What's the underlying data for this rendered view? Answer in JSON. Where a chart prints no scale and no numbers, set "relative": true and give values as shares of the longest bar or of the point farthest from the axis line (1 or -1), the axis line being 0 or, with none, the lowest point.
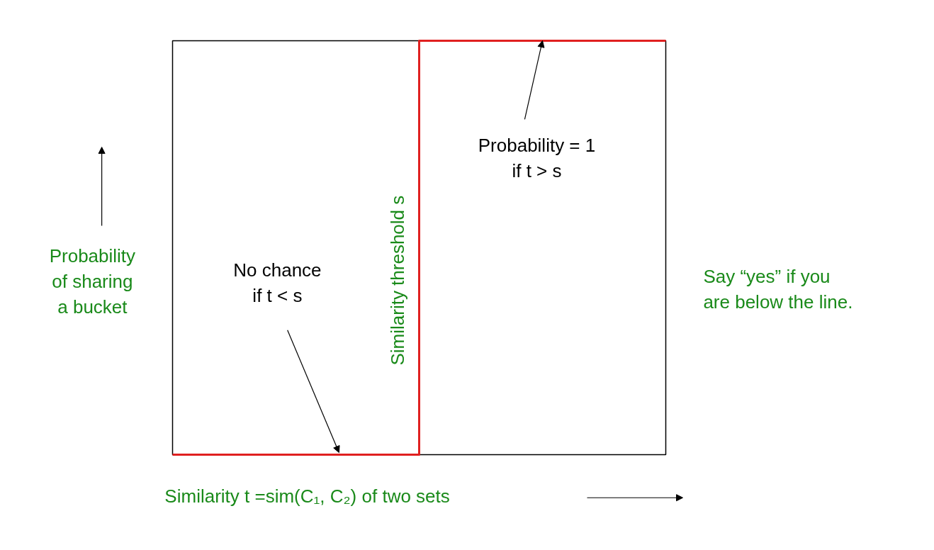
{
  "chart_data": {
    "type": "step",
    "relative": true,
    "categories": [
      null,
      null,
      null
    ],
    "series": [
      {
        "color": "#e02020",
        "values": [
          0,
          1,
          1
        ]
      }
    ],
    "xlabel": "Similarity  t =sim(C₁, C₂) of two sets",
    "ylabel": "Probability\nof sharing\na bucket",
    "annotations": [
      "Similarity threshold s",
      "No chance\nif t < s",
      "Probability = 1\nif t > s",
      "Say “yes” if you\nare below the line."
    ],
    "grid": false
  }
}
